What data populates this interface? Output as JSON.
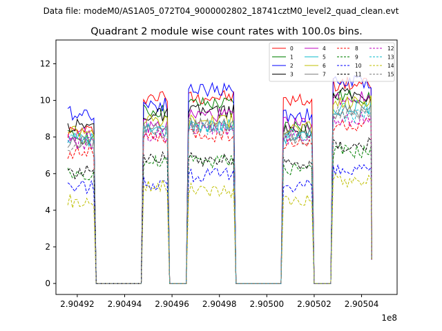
{
  "header": {
    "data_file": "Data file: modeM0/AS1A05_072T04_9000002802_18741cztM0_level2_quad_clean.evt"
  },
  "chart_data": {
    "type": "line",
    "title": "Quadrant 2 module wise count rates with 100.0s bins.",
    "xlabel": "",
    "ylabel": "",
    "x_offset_label": "1e8",
    "xlim": [
      2.904911,
      2.905055
    ],
    "ylim": [
      -0.6,
      13.3
    ],
    "x_ticks": [
      2.90492,
      2.90494,
      2.90496,
      2.90498,
      2.905,
      2.90502,
      2.90504
    ],
    "x_tick_labels": [
      "2.90492",
      "2.90494",
      "2.90496",
      "2.90498",
      "2.90500",
      "2.90502",
      "2.90504"
    ],
    "y_ticks": [
      0,
      2,
      4,
      6,
      8,
      10,
      12
    ],
    "y_tick_labels": [
      "0",
      "2",
      "4",
      "6",
      "8",
      "10",
      "12"
    ],
    "legend_position": "top-right",
    "legend_columns": 4,
    "on_segments": [
      [
        2.904916,
        2.904927
      ],
      [
        2.904948,
        2.904958
      ],
      [
        2.904967,
        2.904986
      ],
      [
        2.905007,
        2.905019
      ],
      [
        2.905028,
        2.905044
      ]
    ],
    "gap_value": 0,
    "series": [
      {
        "name": "0",
        "color": "#ff0000",
        "dashed": false,
        "levels": [
          8.3,
          10.2,
          10.2,
          10.0,
          10.9
        ]
      },
      {
        "name": "1",
        "color": "#008000",
        "dashed": false,
        "levels": [
          8.0,
          9.4,
          9.8,
          8.6,
          10.2
        ]
      },
      {
        "name": "2",
        "color": "#0000ff",
        "dashed": false,
        "levels": [
          9.3,
          9.8,
          10.6,
          9.2,
          11.0
        ]
      },
      {
        "name": "3",
        "color": "#000000",
        "dashed": false,
        "levels": [
          8.6,
          9.2,
          9.4,
          8.3,
          10.3
        ]
      },
      {
        "name": "4",
        "color": "#bf00bf",
        "dashed": false,
        "levels": [
          8.1,
          8.6,
          9.2,
          8.7,
          10.1
        ]
      },
      {
        "name": "5",
        "color": "#17becf",
        "dashed": false,
        "levels": [
          7.9,
          8.4,
          8.6,
          8.0,
          9.6
        ]
      },
      {
        "name": "6",
        "color": "#bfbf00",
        "dashed": false,
        "levels": [
          8.4,
          8.9,
          8.9,
          8.5,
          9.9
        ]
      },
      {
        "name": "7",
        "color": "#808080",
        "dashed": false,
        "levels": [
          7.7,
          8.5,
          8.7,
          8.2,
          9.4
        ]
      },
      {
        "name": "8",
        "color": "#ff0000",
        "dashed": true,
        "levels": [
          7.2,
          7.9,
          8.1,
          7.6,
          8.6
        ]
      },
      {
        "name": "9",
        "color": "#008000",
        "dashed": true,
        "levels": [
          6.0,
          6.6,
          6.7,
          6.3,
          7.2
        ]
      },
      {
        "name": "10",
        "color": "#0000ff",
        "dashed": true,
        "levels": [
          5.3,
          5.5,
          5.9,
          5.4,
          6.1
        ]
      },
      {
        "name": "11",
        "color": "#000000",
        "dashed": true,
        "levels": [
          6.1,
          7.0,
          6.8,
          6.6,
          7.6
        ]
      },
      {
        "name": "12",
        "color": "#bf00bf",
        "dashed": true,
        "levels": [
          7.7,
          8.1,
          8.4,
          8.0,
          9.0
        ]
      },
      {
        "name": "13",
        "color": "#17becf",
        "dashed": true,
        "levels": [
          7.8,
          8.3,
          8.5,
          8.1,
          9.2
        ]
      },
      {
        "name": "14",
        "color": "#bfbf00",
        "dashed": true,
        "levels": [
          4.5,
          5.3,
          5.1,
          4.6,
          5.6
        ]
      },
      {
        "name": "15",
        "color": "#808080",
        "dashed": true,
        "levels": [
          7.6,
          8.3,
          8.5,
          8.0,
          9.3
        ]
      }
    ]
  }
}
